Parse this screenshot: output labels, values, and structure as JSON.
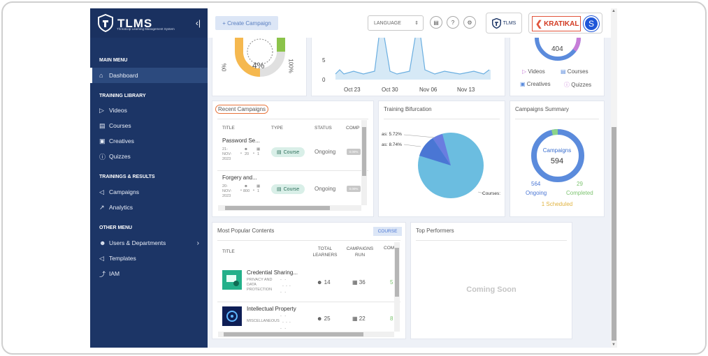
{
  "brand": {
    "name": "TLMS",
    "subtitle": "Threatcop Learning Management System"
  },
  "sidebar": {
    "sections": [
      {
        "title": "MAIN MENU"
      },
      {
        "title": "TRAINING LIBRARY"
      },
      {
        "title": "TRAININGS & RESULTS"
      },
      {
        "title": "OTHER MENU"
      }
    ],
    "items": [
      {
        "label": "Dashboard"
      },
      {
        "label": "Videos"
      },
      {
        "label": "Courses"
      },
      {
        "label": "Creatives"
      },
      {
        "label": "Quizzes"
      },
      {
        "label": "Campaigns"
      },
      {
        "label": "Analytics"
      },
      {
        "label": "Users & Departments"
      },
      {
        "label": "Templates"
      },
      {
        "label": "IAM"
      }
    ]
  },
  "topbar": {
    "create_label": "+ Create Campaign",
    "language_label": "LANGUAGE",
    "tlms_label": "TLMS",
    "org_name": "KRATIKAL",
    "avatar_letter": "S"
  },
  "gauge": {
    "value": "4%",
    "min_label": "0%",
    "max_label": "100%"
  },
  "line_chart": {
    "y_ticks": [
      "5",
      "0"
    ],
    "x_ticks": [
      "Oct 23",
      "Oct 30",
      "Nov 06",
      "Nov 13"
    ]
  },
  "content_ring": {
    "total": "404",
    "legend": [
      "Videos",
      "Courses",
      "Creatives",
      "Quizzes"
    ]
  },
  "recent_campaigns": {
    "title": "Recent Campaigns",
    "headers": [
      "TITLE",
      "TYPE",
      "STATUS",
      "COMP"
    ],
    "rows": [
      {
        "title": "Password Se...",
        "date": "21-\nNOV-\n2023",
        "learners": "20",
        "runs": "1",
        "type": "Course",
        "status": "Ongoing",
        "comp": "0.00%"
      },
      {
        "title": "Forgery and...",
        "date": "20-\nNOV-\n2023",
        "learners": "800",
        "runs": "1",
        "type": "Course",
        "status": "Ongoing",
        "comp": "0.00%"
      }
    ]
  },
  "training_bifurcation": {
    "title": "Training Bifurcation",
    "labels": [
      "as: 5.72%",
      "as: 8.74%",
      "Courses:"
    ]
  },
  "campaigns_summary": {
    "title": "Campaigns Summary",
    "center_label": "Campaigns",
    "total": "594",
    "ongoing_value": "564",
    "ongoing_label": "Ongoing",
    "completed_value": "29",
    "completed_label": "Completed",
    "scheduled_label": "1 Scheduled"
  },
  "popular_contents": {
    "title": "Most Popular Contents",
    "badge": "COURSE",
    "headers": [
      "TITLE",
      "TOTAL\nLEARNERS",
      "CAMPAIGNS\nRUN",
      "COM"
    ],
    "rows": [
      {
        "title": "Credential Sharing...",
        "category": "PRIVACY AND\nDATA\nPROTECTION",
        "learners": "14",
        "runs": "36",
        "comp": "5"
      },
      {
        "title": "Intellectual Property",
        "category": "MISCELLANEOUS",
        "learners": "25",
        "runs": "22",
        "comp": "8"
      }
    ]
  },
  "top_performers": {
    "title": "Top Performers",
    "empty_text": "Coming Soon"
  },
  "colors": {
    "sidebar": "#1c3566",
    "accent": "#4a76d4",
    "chip": "#d9efe8",
    "ring_blue": "#5b8bdc",
    "ring_green": "#8bd48a"
  }
}
